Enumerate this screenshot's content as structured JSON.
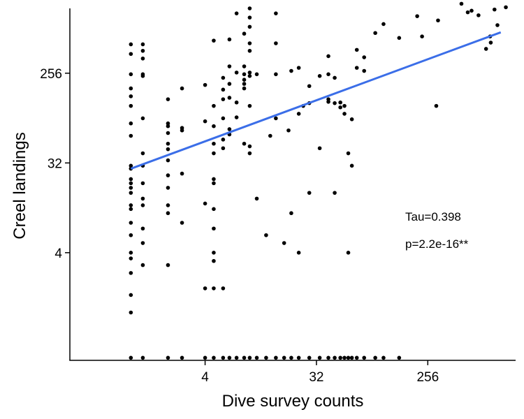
{
  "chart_data": {
    "type": "scatter",
    "title": "",
    "xlabel": "Dive survey counts",
    "ylabel": "Creel landings",
    "x_scale": "log2",
    "y_scale": "log2",
    "xlim": [
      0.32,
      1320
    ],
    "ylim": [
      0.33,
      1150
    ],
    "x_ticks": [
      {
        "value": 4,
        "label": "4"
      },
      {
        "value": 32,
        "label": "32"
      },
      {
        "value": 256,
        "label": "256"
      }
    ],
    "y_ticks": [
      {
        "value": 4,
        "label": "4"
      },
      {
        "value": 32,
        "label": "32"
      },
      {
        "value": 256,
        "label": "256"
      }
    ],
    "grid": false,
    "legend": "none",
    "annotations": [
      {
        "text": "Tau=0.398"
      },
      {
        "text": "p=2.2e-16**"
      }
    ],
    "trend_line": {
      "color": "#3b6ee8",
      "x": [
        1.0,
        1000
      ],
      "y": [
        28,
        660
      ]
    },
    "point_color": "#000000",
    "points": [
      [
        1.0,
        28
      ],
      [
        1.0,
        22
      ],
      [
        1.0,
        16
      ],
      [
        1.0,
        12
      ],
      [
        1.0,
        11
      ],
      [
        1.0,
        8
      ],
      [
        1.0,
        6
      ],
      [
        1.0,
        4
      ],
      [
        1.0,
        3.5
      ],
      [
        1.0,
        2.5
      ],
      [
        1.0,
        1.5
      ],
      [
        1.0,
        1.0
      ],
      [
        1.0,
        0.35
      ],
      [
        1.0,
        30
      ],
      [
        1.0,
        60
      ],
      [
        1.0,
        80
      ],
      [
        1.0,
        120
      ],
      [
        1.0,
        150
      ],
      [
        1.0,
        180
      ],
      [
        1.0,
        250
      ],
      [
        1.0,
        400
      ],
      [
        1.0,
        500
      ],
      [
        1.0,
        20
      ],
      [
        1.0,
        18
      ],
      [
        1.25,
        500
      ],
      [
        1.25,
        430
      ],
      [
        1.25,
        360
      ],
      [
        1.25,
        250
      ],
      [
        1.25,
        240
      ],
      [
        1.25,
        90
      ],
      [
        1.25,
        40
      ],
      [
        1.25,
        30
      ],
      [
        1.25,
        20
      ],
      [
        1.25,
        14
      ],
      [
        1.25,
        12
      ],
      [
        1.25,
        7
      ],
      [
        1.25,
        5
      ],
      [
        1.25,
        3.0
      ],
      [
        1.25,
        0.35
      ],
      [
        2.0,
        140
      ],
      [
        2.0,
        80
      ],
      [
        2.0,
        75
      ],
      [
        2.0,
        64
      ],
      [
        2.0,
        50
      ],
      [
        2.0,
        44
      ],
      [
        2.0,
        34
      ],
      [
        2.0,
        24
      ],
      [
        2.0,
        18
      ],
      [
        2.0,
        12
      ],
      [
        2.0,
        10
      ],
      [
        2.0,
        3.0
      ],
      [
        2.0,
        0.35
      ],
      [
        2.6,
        25
      ],
      [
        2.6,
        180
      ],
      [
        2.6,
        68
      ],
      [
        2.6,
        72
      ],
      [
        2.6,
        8
      ],
      [
        2.6,
        0.35
      ],
      [
        4.0,
        195
      ],
      [
        4.0,
        84
      ],
      [
        4.0,
        12.5
      ],
      [
        4.0,
        1.75
      ],
      [
        4.0,
        0.35
      ],
      [
        4.7,
        545
      ],
      [
        4.7,
        120
      ],
      [
        4.7,
        75
      ],
      [
        4.7,
        50
      ],
      [
        4.7,
        40
      ],
      [
        4.7,
        22
      ],
      [
        4.7,
        20
      ],
      [
        4.7,
        11
      ],
      [
        4.7,
        7
      ],
      [
        4.7,
        4.0
      ],
      [
        4.7,
        3.3
      ],
      [
        4.7,
        1.75
      ],
      [
        4.7,
        0.35
      ],
      [
        5.6,
        230
      ],
      [
        5.6,
        175
      ],
      [
        5.6,
        140
      ],
      [
        5.6,
        90
      ],
      [
        5.6,
        55
      ],
      [
        5.6,
        45
      ],
      [
        5.6,
        0.35
      ],
      [
        5.6,
        1.75
      ],
      [
        6.3,
        560
      ],
      [
        6.3,
        300
      ],
      [
        6.3,
        200
      ],
      [
        6.3,
        145
      ],
      [
        6.3,
        70
      ],
      [
        6.3,
        62
      ],
      [
        6.3,
        0.35
      ],
      [
        7.2,
        1024
      ],
      [
        7.2,
        260
      ],
      [
        7.2,
        130
      ],
      [
        7.2,
        92
      ],
      [
        7.2,
        0.35
      ],
      [
        8.3,
        640
      ],
      [
        8.3,
        300
      ],
      [
        8.3,
        250
      ],
      [
        8.3,
        220
      ],
      [
        8.3,
        200
      ],
      [
        8.3,
        180
      ],
      [
        8.3,
        50
      ],
      [
        8.3,
        0.35
      ],
      [
        9.2,
        1150
      ],
      [
        9.2,
        930
      ],
      [
        9.2,
        750
      ],
      [
        9.2,
        512
      ],
      [
        9.2,
        430
      ],
      [
        9.2,
        260
      ],
      [
        9.2,
        240
      ],
      [
        9.2,
        120
      ],
      [
        9.2,
        47
      ],
      [
        9.2,
        40
      ],
      [
        9.2,
        0.35
      ],
      [
        10.5,
        250
      ],
      [
        10.5,
        14
      ],
      [
        10.5,
        0.35
      ],
      [
        12.5,
        6
      ],
      [
        12.5,
        0.35
      ],
      [
        13.5,
        60
      ],
      [
        15,
        1024
      ],
      [
        15,
        512
      ],
      [
        15,
        250
      ],
      [
        15,
        90
      ],
      [
        15,
        0.35
      ],
      [
        17.5,
        5
      ],
      [
        17.5,
        0.35
      ],
      [
        19,
        68
      ],
      [
        20,
        270
      ],
      [
        20,
        10
      ],
      [
        20,
        0.35
      ],
      [
        23,
        290
      ],
      [
        23,
        100
      ],
      [
        23,
        4.0
      ],
      [
        23,
        0.35
      ],
      [
        25,
        120
      ],
      [
        28,
        190
      ],
      [
        28,
        128
      ],
      [
        28,
        16
      ],
      [
        28,
        0.35
      ],
      [
        34,
        240
      ],
      [
        34,
        45
      ],
      [
        34,
        0.35
      ],
      [
        40,
        380
      ],
      [
        40,
        250
      ],
      [
        40,
        140
      ],
      [
        40,
        132
      ],
      [
        40,
        0.35
      ],
      [
        45,
        230
      ],
      [
        45,
        128
      ],
      [
        45,
        16
      ],
      [
        45,
        0.35
      ],
      [
        50,
        130
      ],
      [
        50,
        116
      ],
      [
        50,
        0.35
      ],
      [
        54,
        120
      ],
      [
        54,
        100
      ],
      [
        54,
        0.35
      ],
      [
        58,
        40
      ],
      [
        58,
        4.0
      ],
      [
        58,
        0.35
      ],
      [
        62,
        88
      ],
      [
        62,
        30
      ],
      [
        62,
        0.35
      ],
      [
        68,
        440
      ],
      [
        68,
        290
      ],
      [
        68,
        0.35
      ],
      [
        78,
        370
      ],
      [
        78,
        270
      ],
      [
        78,
        0.35
      ],
      [
        96,
        650
      ],
      [
        96,
        0.35
      ],
      [
        112,
        800
      ],
      [
        112,
        0.35
      ],
      [
        150,
        580
      ],
      [
        150,
        0.35
      ],
      [
        210,
        960
      ],
      [
        230,
        600
      ],
      [
        300,
        120
      ],
      [
        310,
        870
      ],
      [
        480,
        1280
      ],
      [
        540,
        1050
      ],
      [
        580,
        1090
      ],
      [
        660,
        980
      ],
      [
        760,
        450
      ],
      [
        820,
        600
      ],
      [
        830,
        520
      ],
      [
        890,
        1120
      ],
      [
        940,
        780
      ],
      [
        1100,
        1180
      ]
    ]
  }
}
